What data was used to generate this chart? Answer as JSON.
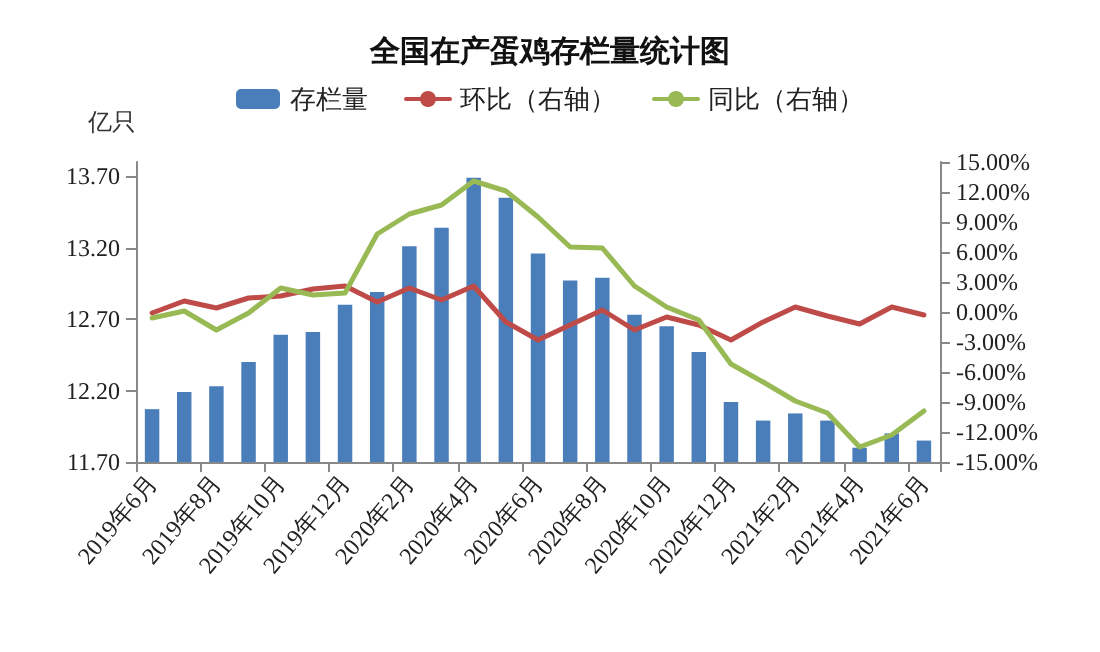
{
  "chart_data": {
    "type": "bar",
    "title": "全国在产蛋鸡存栏量统计图",
    "ylabel": "亿只",
    "categories": [
      "2019年6月",
      null,
      "2019年8月",
      null,
      "2019年10月",
      null,
      "2019年12月",
      null,
      "2020年2月",
      null,
      "2020年4月",
      null,
      "2020年6月",
      null,
      "2020年8月",
      null,
      "2020年10月",
      null,
      "2020年12月",
      null,
      "2021年2月",
      null,
      "2021年4月",
      null,
      "2021年6月"
    ],
    "series": [
      {
        "name": "存栏量",
        "color": "#4a7ebb",
        "values": [
          12.07,
          12.19,
          12.23,
          12.4,
          12.59,
          12.61,
          12.8,
          12.89,
          13.21,
          13.34,
          13.69,
          13.55,
          13.16,
          12.97,
          12.99,
          12.73,
          12.65,
          12.47,
          12.12,
          11.99,
          12.04,
          11.99,
          11.8,
          11.9,
          11.85
        ]
      },
      {
        "name": "环比（右轴）",
        "type": "line",
        "axis": "y2",
        "color": "#be4b48",
        "values": [
          -0.1,
          1.1,
          0.4,
          1.4,
          1.6,
          2.3,
          2.6,
          1.0,
          2.4,
          1.2,
          2.6,
          -1.0,
          -2.8,
          -1.3,
          0.2,
          -1.8,
          -0.5,
          -1.3,
          -2.8,
          -1.0,
          0.5,
          -0.4,
          -1.2,
          0.5,
          -0.3
        ]
      },
      {
        "name": "同比（右轴）",
        "type": "line",
        "axis": "y2",
        "color": "#98b954",
        "values": [
          -0.6,
          0.1,
          -1.8,
          -0.1,
          2.4,
          1.7,
          1.9,
          7.8,
          9.8,
          10.7,
          13.1,
          12.1,
          9.5,
          6.5,
          6.4,
          2.6,
          0.5,
          -0.8,
          -5.2,
          -7.0,
          -8.9,
          -10.1,
          -13.5,
          -12.3,
          -9.9
        ]
      }
    ],
    "ylim": [
      11.7,
      13.8
    ],
    "yticks": [
      {
        "value": 11.7,
        "label": "11.70"
      },
      {
        "value": 12.2,
        "label": "12.20"
      },
      {
        "value": 12.7,
        "label": "12.70"
      },
      {
        "value": 13.2,
        "label": "13.20"
      },
      {
        "value": 13.7,
        "label": "13.70"
      }
    ],
    "y2lim": [
      -15,
      15
    ],
    "y2ticks": [
      {
        "value": -15,
        "label": "-15.00%"
      },
      {
        "value": -12,
        "label": "-12.00%"
      },
      {
        "value": -9,
        "label": "-9.00%"
      },
      {
        "value": -6,
        "label": "-6.00%"
      },
      {
        "value": -3,
        "label": "-3.00%"
      },
      {
        "value": 0,
        "label": "0.00%"
      },
      {
        "value": 3,
        "label": "3.00%"
      },
      {
        "value": 6,
        "label": "6.00%"
      },
      {
        "value": 9,
        "label": "9.00%"
      },
      {
        "value": 12,
        "label": "12.00%"
      },
      {
        "value": 15,
        "label": "15.00%"
      }
    ],
    "grid": false,
    "legend": "top",
    "marker": "none",
    "line_style": "solid"
  }
}
